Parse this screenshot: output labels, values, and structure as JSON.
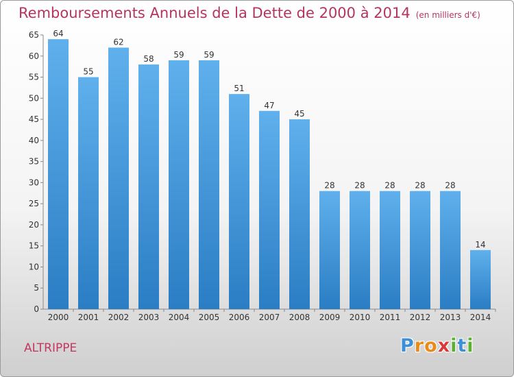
{
  "chart_data": {
    "type": "bar",
    "title": "Remboursements Annuels de la Dette de 2000 à 2014",
    "subtitle": "(en milliers d'€)",
    "categories": [
      "2000",
      "2001",
      "2002",
      "2003",
      "2004",
      "2005",
      "2006",
      "2007",
      "2008",
      "2009",
      "2010",
      "2011",
      "2012",
      "2013",
      "2014"
    ],
    "values": [
      64,
      55,
      62,
      58,
      59,
      59,
      51,
      47,
      45,
      28,
      28,
      28,
      28,
      28,
      14
    ],
    "ylim": [
      0,
      65
    ],
    "yticks": [
      0,
      5,
      10,
      15,
      20,
      25,
      30,
      35,
      40,
      45,
      50,
      55,
      60,
      65
    ],
    "grid": false,
    "bar_color_top": "#5fb0ec",
    "bar_color_bottom": "#2b7dc4"
  },
  "commune": "ALTRIPPE",
  "logo": {
    "letters": [
      "P",
      "r",
      "o",
      "x",
      "i",
      "t",
      "i"
    ],
    "colors": [
      "#3d8fd6",
      "#e98a1c",
      "#e98a1c",
      "#d93b3b",
      "#5bb032",
      "#3d8fd6",
      "#5bb032"
    ]
  }
}
